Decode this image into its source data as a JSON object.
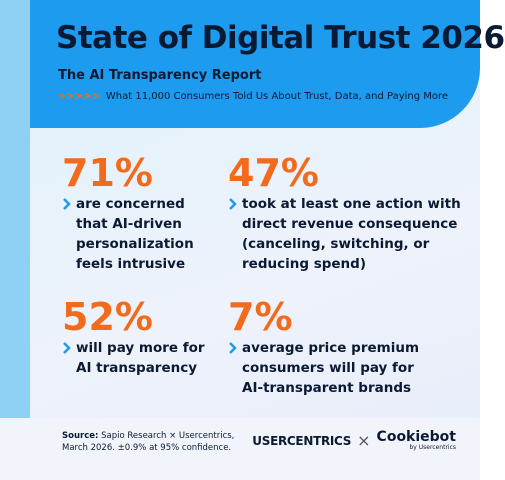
{
  "header": {
    "title": "State of Digital Trust 2026",
    "subtitle": "The AI Transparency Report",
    "arrows": ">>>>>",
    "tagline": "What 11,000 Consumers Told Us About Trust, Data, and Paying More"
  },
  "stats": [
    {
      "value": "71%",
      "lines": [
        "are concerned",
        "that AI-driven",
        "personalization",
        "feels intrusive"
      ]
    },
    {
      "value": "47%",
      "lines": [
        "took at least one action with",
        "direct revenue consequence",
        "(canceling, switching, or",
        "reducing spend)"
      ]
    },
    {
      "value": "52%",
      "lines": [
        "will pay more for",
        "AI transparency"
      ]
    },
    {
      "value": "7%",
      "lines": [
        "average price premium",
        "consumers will pay for",
        "AI-transparent brands"
      ]
    }
  ],
  "footer": {
    "source_label": "Source:",
    "source_lines": [
      "Sapio Research × Usercentrics,",
      "March 2026. ±0.9% at 95% confidence."
    ],
    "logo1": "USERCENTRICS",
    "times": "×",
    "logo2": "Cookiebot",
    "logo2_sub": "by Usercentrics"
  }
}
